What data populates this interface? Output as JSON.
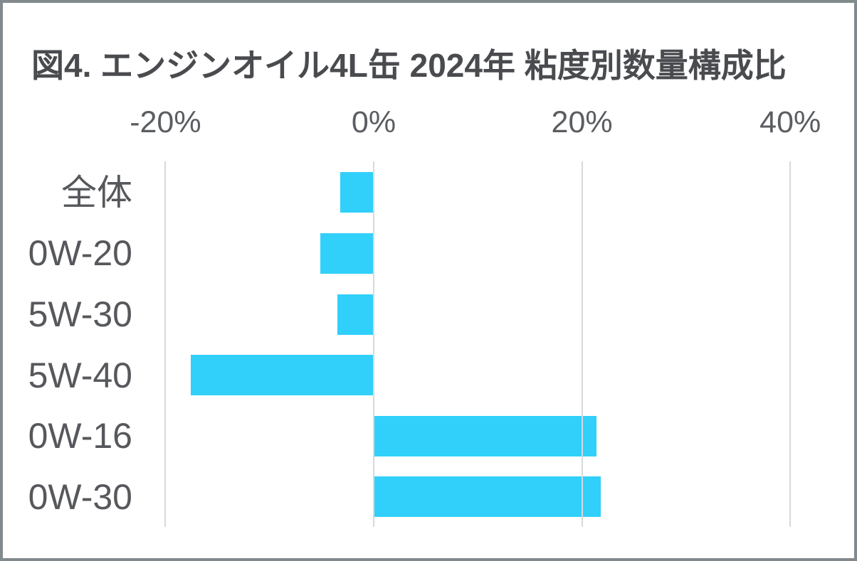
{
  "title": {
    "text": "図4. エンジンオイル4L缶 2024年 粘度別数量構成比",
    "color": "#494b4f"
  },
  "chart_data": {
    "type": "bar",
    "orientation": "horizontal",
    "title": "図4. エンジンオイル4L缶 2024年 粘度別数量構成比",
    "categories": [
      "全体",
      "0W-20",
      "5W-30",
      "5W-40",
      "0W-16",
      "0W-30"
    ],
    "values": [
      -3.2,
      -5.1,
      -3.5,
      -17.6,
      21.4,
      21.8
    ],
    "unit": "%",
    "xlabel": "",
    "ylabel": "",
    "x_axis": {
      "tick_labels": [
        "-20%",
        "0%",
        "20%",
        "40%"
      ],
      "tick_values": [
        -20,
        0,
        20,
        40
      ],
      "range": [
        -20,
        40
      ]
    },
    "grid": "vertical-gridlines-on",
    "legend_position": "none",
    "bar_color": "#31d0fa",
    "gridline_color": "#d6dadb",
    "label_color": "#56585c",
    "tick_label_color": "#5a5d61",
    "frame_color": "#828a8e",
    "background_color": "#ffffff"
  }
}
